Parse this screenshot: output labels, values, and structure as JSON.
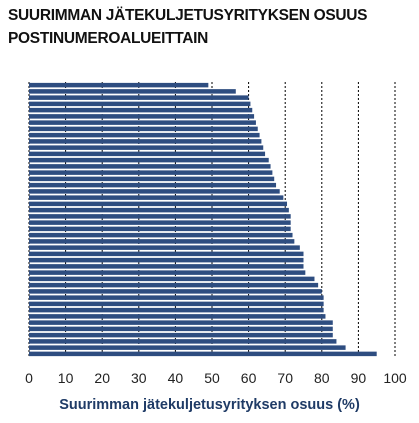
{
  "chart_data": {
    "type": "bar",
    "orientation": "horizontal",
    "title_lines": [
      "SUURIMMAN JÄTEKULJETUSYRITYKSEN OSUUS",
      "POSTINUMEROALUEITTAIN"
    ],
    "xlabel": "Suurimman jätekuljetusyrityksen osuus (%)",
    "ylabel": "",
    "xlim": [
      0,
      100
    ],
    "xticks": [
      "0",
      "10",
      "20",
      "30",
      "40",
      "50",
      "60",
      "70",
      "80",
      "90",
      "100"
    ],
    "grid": "vertical dashed at each tick",
    "bar_color": "#2e4d80",
    "values": [
      49,
      56.5,
      60,
      60.5,
      61,
      61.5,
      62,
      62.5,
      63,
      63.5,
      64,
      64.5,
      65.5,
      66,
      66.5,
      67,
      67.5,
      68.5,
      69.5,
      70.5,
      71,
      71.5,
      71.5,
      71.5,
      72,
      72.5,
      74,
      75,
      75,
      75,
      75.5,
      78,
      79,
      80,
      80.5,
      80.5,
      80.5,
      81,
      83,
      83,
      83,
      84,
      86.5,
      95
    ]
  }
}
